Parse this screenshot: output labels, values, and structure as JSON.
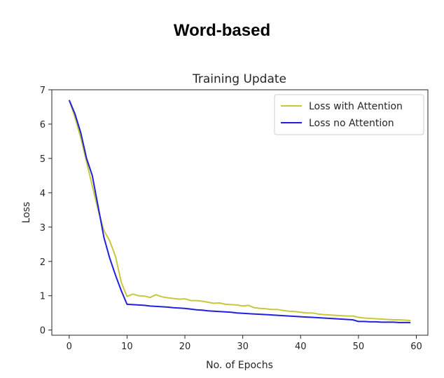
{
  "page": {
    "heading": "Word-based"
  },
  "chart_data": {
    "type": "line",
    "title": "Training Update",
    "xlabel": "No. of Epochs",
    "ylabel": "Loss",
    "xlim": [
      -3,
      62
    ],
    "ylim": [
      -0.15,
      7
    ],
    "xticks": [
      0,
      10,
      20,
      30,
      40,
      50,
      60
    ],
    "yticks": [
      0,
      1,
      2,
      3,
      4,
      5,
      6,
      7
    ],
    "legend": "top-right",
    "grid": false,
    "series": [
      {
        "name": "Loss with Attention",
        "color": "#c8c83a",
        "x": [
          0,
          1,
          2,
          3,
          4,
          5,
          6,
          7,
          8,
          9,
          10,
          11,
          12,
          13,
          14,
          15,
          16,
          17,
          18,
          19,
          20,
          21,
          22,
          23,
          24,
          25,
          26,
          27,
          28,
          29,
          30,
          31,
          32,
          33,
          34,
          35,
          36,
          37,
          38,
          39,
          40,
          41,
          42,
          43,
          44,
          45,
          46,
          47,
          48,
          49,
          50,
          51,
          52,
          53,
          54,
          55,
          56,
          57,
          58,
          59
        ],
        "values": [
          6.7,
          6.2,
          5.6,
          4.9,
          4.2,
          3.5,
          2.9,
          2.6,
          2.15,
          1.4,
          0.98,
          1.05,
          1.0,
          0.99,
          0.95,
          1.03,
          0.97,
          0.94,
          0.92,
          0.9,
          0.91,
          0.86,
          0.86,
          0.84,
          0.81,
          0.78,
          0.79,
          0.75,
          0.74,
          0.73,
          0.7,
          0.72,
          0.65,
          0.63,
          0.62,
          0.6,
          0.6,
          0.57,
          0.55,
          0.54,
          0.52,
          0.5,
          0.5,
          0.47,
          0.45,
          0.44,
          0.43,
          0.42,
          0.41,
          0.41,
          0.37,
          0.35,
          0.34,
          0.33,
          0.32,
          0.31,
          0.3,
          0.3,
          0.29,
          0.28
        ]
      },
      {
        "name": "Loss no Attention",
        "color": "#2020e0",
        "x": [
          0,
          1,
          2,
          3,
          4,
          5,
          6,
          7,
          8,
          9,
          10,
          11,
          12,
          13,
          14,
          15,
          16,
          17,
          18,
          19,
          20,
          21,
          22,
          23,
          24,
          25,
          26,
          27,
          28,
          29,
          30,
          31,
          32,
          33,
          34,
          35,
          36,
          37,
          38,
          39,
          40,
          41,
          42,
          43,
          44,
          45,
          46,
          47,
          48,
          49,
          50,
          51,
          52,
          53,
          54,
          55,
          56,
          57,
          58,
          59
        ],
        "values": [
          6.7,
          6.3,
          5.75,
          5.0,
          4.5,
          3.6,
          2.7,
          2.1,
          1.6,
          1.15,
          0.75,
          0.74,
          0.73,
          0.72,
          0.7,
          0.69,
          0.68,
          0.67,
          0.65,
          0.64,
          0.63,
          0.61,
          0.59,
          0.58,
          0.56,
          0.55,
          0.54,
          0.53,
          0.52,
          0.5,
          0.49,
          0.48,
          0.47,
          0.46,
          0.45,
          0.44,
          0.43,
          0.42,
          0.41,
          0.4,
          0.39,
          0.38,
          0.37,
          0.36,
          0.35,
          0.34,
          0.33,
          0.32,
          0.31,
          0.3,
          0.25,
          0.25,
          0.24,
          0.24,
          0.23,
          0.23,
          0.23,
          0.22,
          0.22,
          0.22
        ]
      }
    ]
  }
}
